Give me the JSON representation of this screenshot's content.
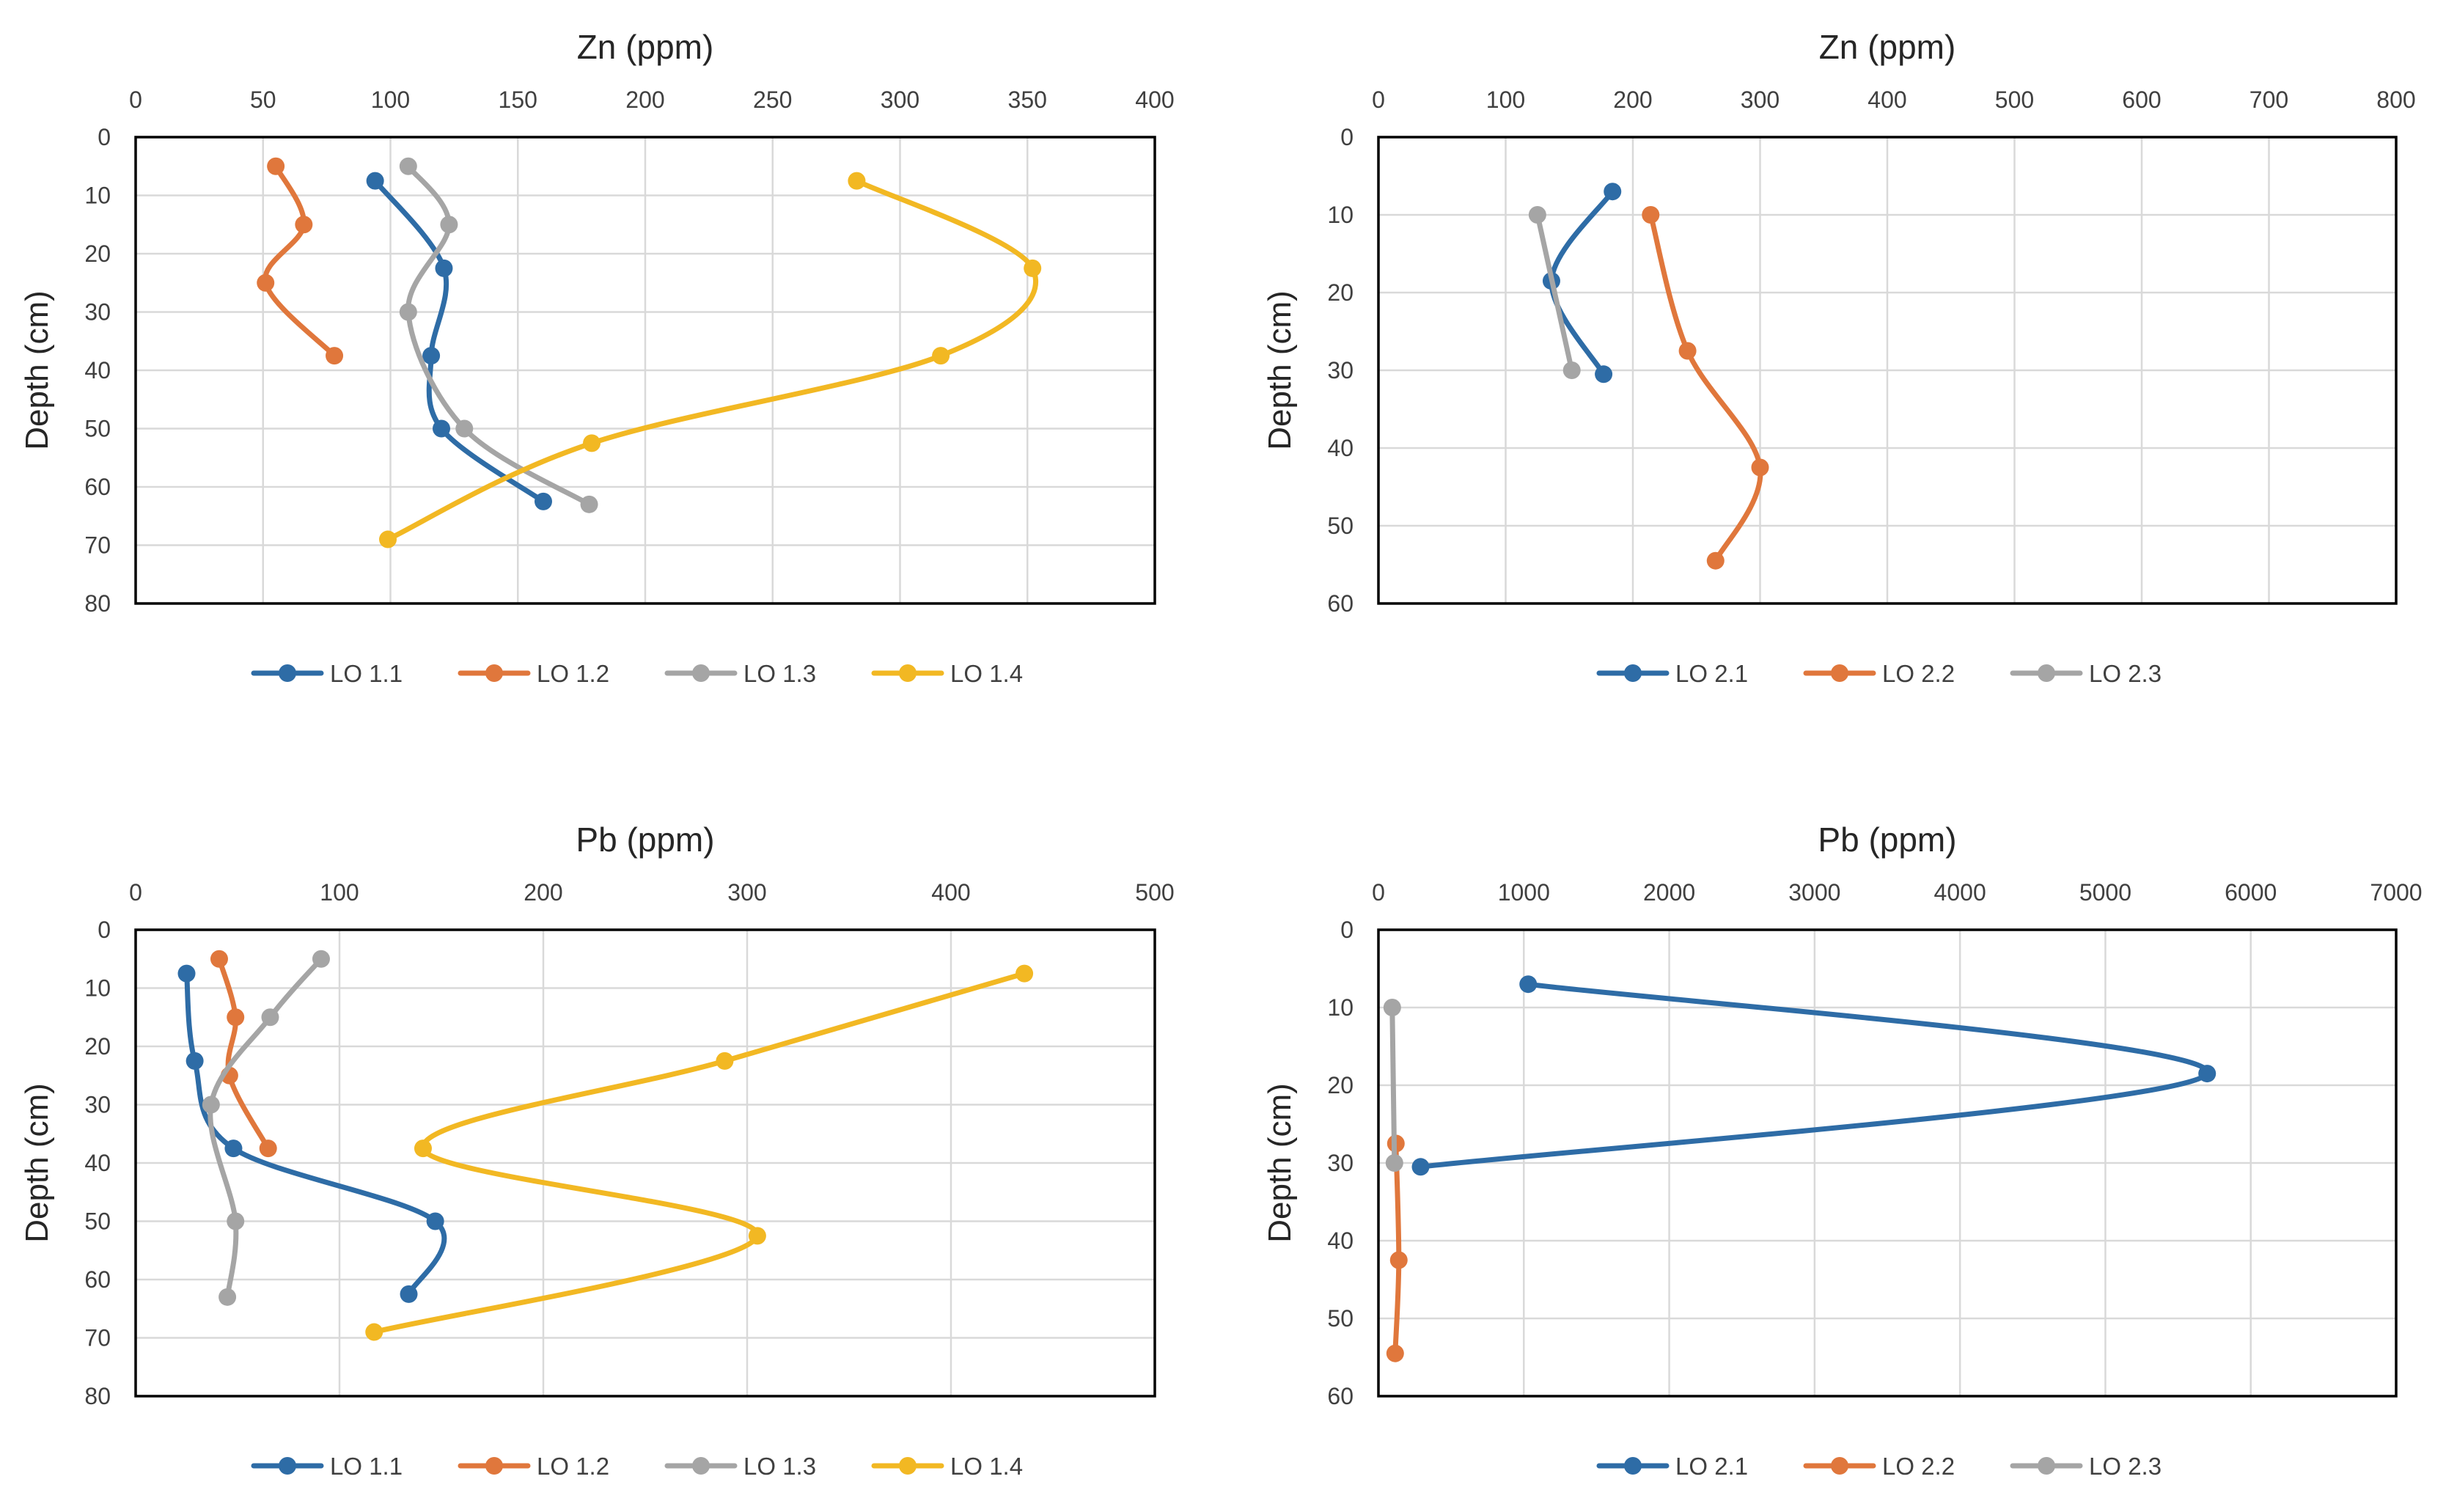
{
  "figure": {
    "panel_count": 4
  },
  "chart_data": [
    {
      "type": "line",
      "orientation": "depth-profile",
      "title": "Zn (ppm)",
      "xlabel": "Zn (ppm)",
      "ylabel": "Depth (cm)",
      "xlim": [
        0,
        400
      ],
      "ylim": [
        0,
        80
      ],
      "xticks": [
        0,
        50,
        100,
        150,
        200,
        250,
        300,
        350,
        400
      ],
      "yticks": [
        0,
        10,
        20,
        30,
        40,
        50,
        60,
        70,
        80
      ],
      "x_axis_position": "top",
      "y_inverted": true,
      "grid": true,
      "legend": "bottom",
      "series": [
        {
          "name": "LO 1.1",
          "color": "#2e6ca6",
          "points": [
            [
              94,
              7.5
            ],
            [
              121,
              22.5
            ],
            [
              116,
              37.5
            ],
            [
              120,
              50
            ],
            [
              160,
              62.5
            ]
          ]
        },
        {
          "name": "LO 1.2",
          "color": "#e0773c",
          "points": [
            [
              55,
              5
            ],
            [
              66,
              15
            ],
            [
              51,
              25
            ],
            [
              78,
              37.5
            ]
          ]
        },
        {
          "name": "LO 1.3",
          "color": "#a5a5a5",
          "points": [
            [
              107,
              5
            ],
            [
              123,
              15
            ],
            [
              107,
              30
            ],
            [
              129,
              50
            ],
            [
              178,
              63
            ]
          ]
        },
        {
          "name": "LO 1.4",
          "color": "#f2b823",
          "points": [
            [
              283,
              7.5
            ],
            [
              352,
              22.5
            ],
            [
              316,
              37.5
            ],
            [
              179,
              52.5
            ],
            [
              99,
              69
            ]
          ]
        }
      ]
    },
    {
      "type": "line",
      "orientation": "depth-profile",
      "title": "Zn (ppm)",
      "xlabel": "Zn (ppm)",
      "ylabel": "Depth (cm)",
      "xlim": [
        0,
        800
      ],
      "ylim": [
        0,
        60
      ],
      "xticks": [
        0,
        100,
        200,
        300,
        400,
        500,
        600,
        700,
        800
      ],
      "yticks": [
        0,
        10,
        20,
        30,
        40,
        50,
        60
      ],
      "x_axis_position": "top",
      "y_inverted": true,
      "grid": true,
      "legend": "bottom",
      "series": [
        {
          "name": "LO 2.1",
          "color": "#2e6ca6",
          "points": [
            [
              184,
              7
            ],
            [
              136,
              18.5
            ],
            [
              177,
              30.5
            ]
          ]
        },
        {
          "name": "LO 2.2",
          "color": "#e0773c",
          "points": [
            [
              214,
              10
            ],
            [
              243,
              27.5
            ],
            [
              300,
              42.5
            ],
            [
              265,
              54.5
            ]
          ]
        },
        {
          "name": "LO 2.3",
          "color": "#a5a5a5",
          "points": [
            [
              125,
              10
            ],
            [
              152,
              30
            ]
          ]
        }
      ]
    },
    {
      "type": "line",
      "orientation": "depth-profile",
      "title": "Pb (ppm)",
      "xlabel": "Pb (ppm)",
      "ylabel": "Depth (cm)",
      "xlim": [
        0,
        500
      ],
      "ylim": [
        0,
        80
      ],
      "xticks": [
        0,
        100,
        200,
        300,
        400,
        500
      ],
      "yticks": [
        0,
        10,
        20,
        30,
        40,
        50,
        60,
        70,
        80
      ],
      "x_axis_position": "top",
      "y_inverted": true,
      "grid": true,
      "legend": "bottom",
      "series": [
        {
          "name": "LO 1.1",
          "color": "#2e6ca6",
          "points": [
            [
              25,
              7.5
            ],
            [
              29,
              22.5
            ],
            [
              48,
              37.5
            ],
            [
              147,
              50
            ],
            [
              134,
              62.5
            ]
          ]
        },
        {
          "name": "LO 1.2",
          "color": "#e0773c",
          "points": [
            [
              41,
              5
            ],
            [
              49,
              15
            ],
            [
              46,
              25
            ],
            [
              65,
              37.5
            ]
          ]
        },
        {
          "name": "LO 1.3",
          "color": "#a5a5a5",
          "points": [
            [
              91,
              5
            ],
            [
              66,
              15
            ],
            [
              37,
              30
            ],
            [
              49,
              50
            ],
            [
              45,
              63
            ]
          ]
        },
        {
          "name": "LO 1.4",
          "color": "#f2b823",
          "points": [
            [
              436,
              7.5
            ],
            [
              289,
              22.5
            ],
            [
              141,
              37.5
            ],
            [
              305,
              52.5
            ],
            [
              117,
              69
            ]
          ]
        }
      ]
    },
    {
      "type": "line",
      "orientation": "depth-profile",
      "title": "Pb (ppm)",
      "xlabel": "Pb (ppm)",
      "ylabel": "Depth (cm)",
      "xlim": [
        0,
        7000
      ],
      "ylim": [
        0,
        60
      ],
      "xticks": [
        0,
        1000,
        2000,
        3000,
        4000,
        5000,
        6000,
        7000
      ],
      "yticks": [
        0,
        10,
        20,
        30,
        40,
        50,
        60
      ],
      "x_axis_position": "top",
      "y_inverted": true,
      "grid": true,
      "legend": "bottom",
      "series": [
        {
          "name": "LO 2.1",
          "color": "#2e6ca6",
          "points": [
            [
              1030,
              7
            ],
            [
              5700,
              18.5
            ],
            [
              290,
              30.5
            ]
          ]
        },
        {
          "name": "LO 2.2",
          "color": "#e0773c",
          "points": [
            [
              120,
              27.5
            ],
            [
              140,
              42.5
            ],
            [
              115,
              54.5
            ]
          ]
        },
        {
          "name": "LO 2.3",
          "color": "#a5a5a5",
          "points": [
            [
              95,
              10
            ],
            [
              110,
              30
            ]
          ]
        }
      ]
    }
  ]
}
